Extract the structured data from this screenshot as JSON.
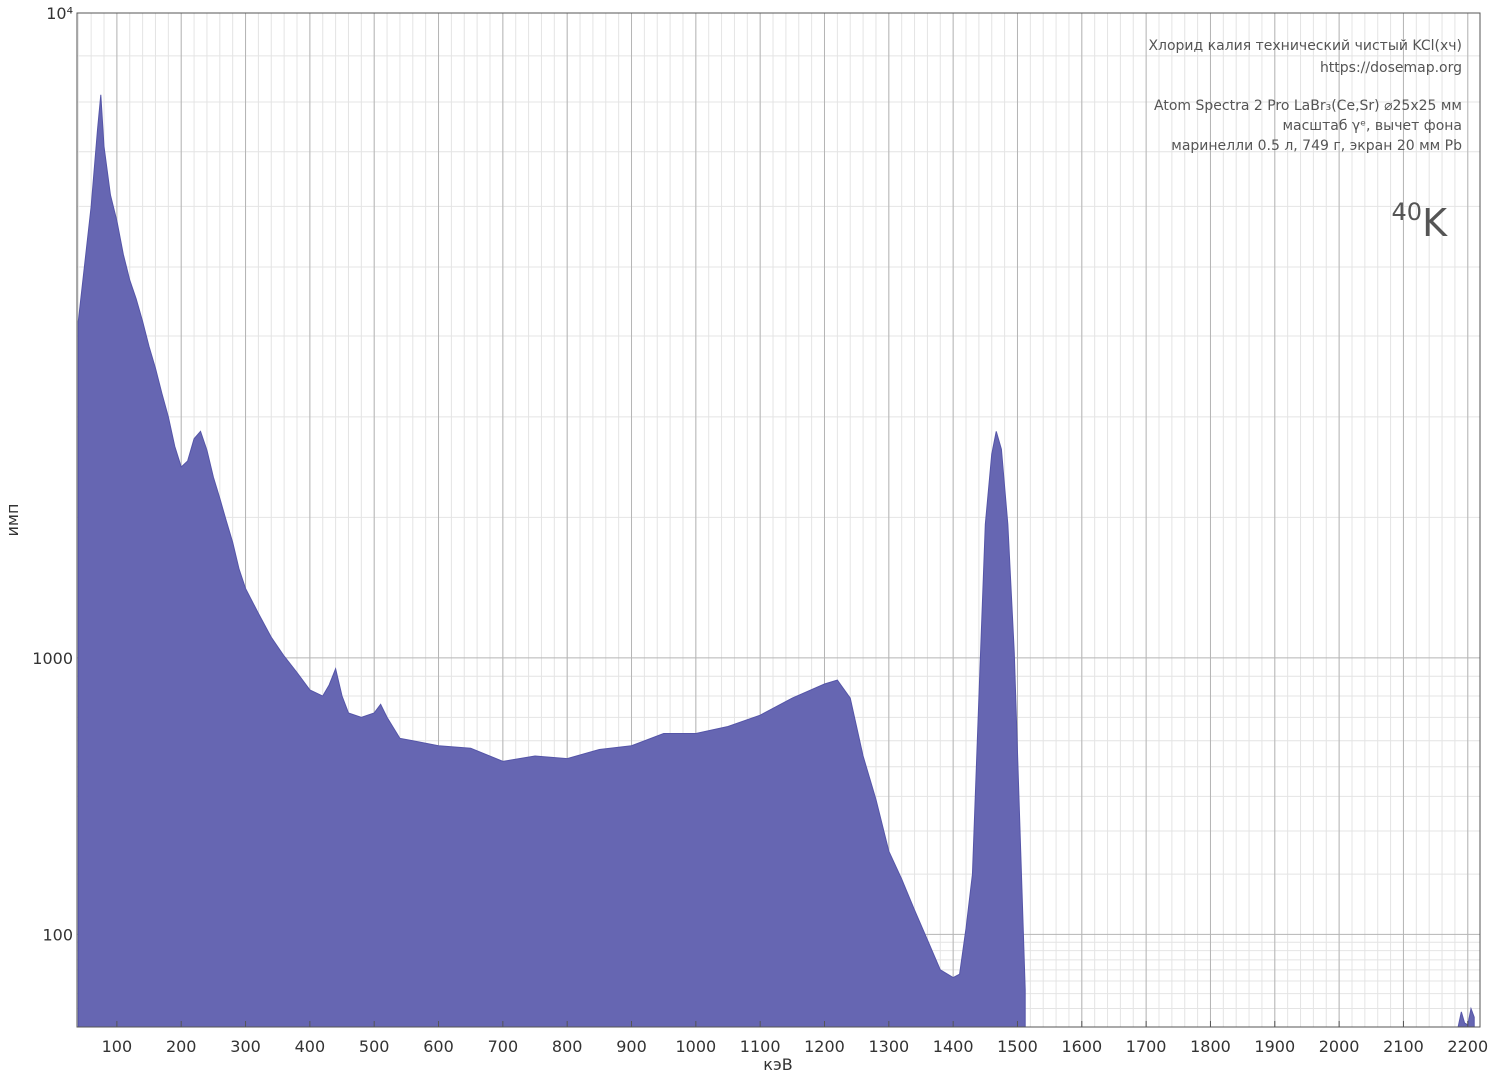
{
  "chart_data": {
    "type": "area",
    "xlabel": "кэВ",
    "ylabel": "имп",
    "notes": [
      "Хлорид калия технический чистый KCl(хч)",
      "https://dosemap.org",
      "Atom Spectra 2 Pro LaBr₃(Ce,Sr) ⌀25x25 мм",
      "масштаб γᵉ, вычет фона",
      "маринелли 0.5 л, 749 г, экран 20 мм Pb"
    ],
    "isotope": {
      "mass": "40",
      "symbol": "K"
    },
    "yscale": "gamma-e",
    "grid": true,
    "color": "#6666b2",
    "xlim": [
      38,
      2219
    ],
    "ylim": [
      20,
      10000
    ],
    "xticks": [
      100,
      200,
      300,
      400,
      500,
      600,
      700,
      800,
      900,
      1000,
      1100,
      1200,
      1300,
      1400,
      1500,
      1600,
      1700,
      1800,
      1900,
      2000,
      2100,
      2200
    ],
    "xminor_step": 20,
    "yticks": [
      100,
      1000,
      {
        "value": 10000,
        "label": "10⁴"
      }
    ],
    "yminor": [
      30,
      40,
      50,
      60,
      70,
      80,
      90,
      200,
      300,
      400,
      500,
      600,
      700,
      800,
      900,
      2000,
      3000,
      4000,
      5000,
      6000,
      7000,
      8000,
      9000
    ],
    "x": [
      40,
      50,
      60,
      70,
      75,
      80,
      90,
      100,
      110,
      120,
      130,
      140,
      150,
      160,
      170,
      180,
      190,
      200,
      210,
      220,
      230,
      240,
      250,
      260,
      270,
      280,
      290,
      300,
      320,
      340,
      360,
      380,
      400,
      420,
      430,
      440,
      450,
      460,
      480,
      500,
      510,
      520,
      540,
      560,
      600,
      650,
      700,
      750,
      800,
      850,
      900,
      950,
      1000,
      1050,
      1100,
      1150,
      1200,
      1220,
      1240,
      1260,
      1280,
      1300,
      1320,
      1340,
      1360,
      1380,
      1400,
      1410,
      1420,
      1430,
      1440,
      1450,
      1460,
      1467,
      1475,
      1485,
      1495,
      1505,
      1512,
      1518,
      2180,
      2185,
      2190,
      2195,
      2200,
      2205,
      2210
    ],
    "values": [
      4200,
      5050,
      6000,
      7450,
      8150,
      7100,
      6200,
      5750,
      5200,
      4800,
      4520,
      4200,
      3860,
      3580,
      3270,
      3000,
      2680,
      2470,
      2530,
      2760,
      2840,
      2640,
      2370,
      2170,
      1970,
      1790,
      1580,
      1440,
      1270,
      1120,
      1010,
      920,
      830,
      800,
      855,
      940,
      800,
      720,
      700,
      720,
      760,
      700,
      610,
      600,
      580,
      570,
      520,
      540,
      530,
      565,
      580,
      630,
      630,
      660,
      710,
      790,
      860,
      880,
      790,
      540,
      390,
      250,
      190,
      135,
      93,
      60,
      53,
      56,
      108,
      200,
      790,
      1940,
      2600,
      2840,
      2650,
      1940,
      1030,
      250,
      43,
      null,
      null,
      20,
      28,
      22,
      21,
      30,
      25
    ]
  }
}
